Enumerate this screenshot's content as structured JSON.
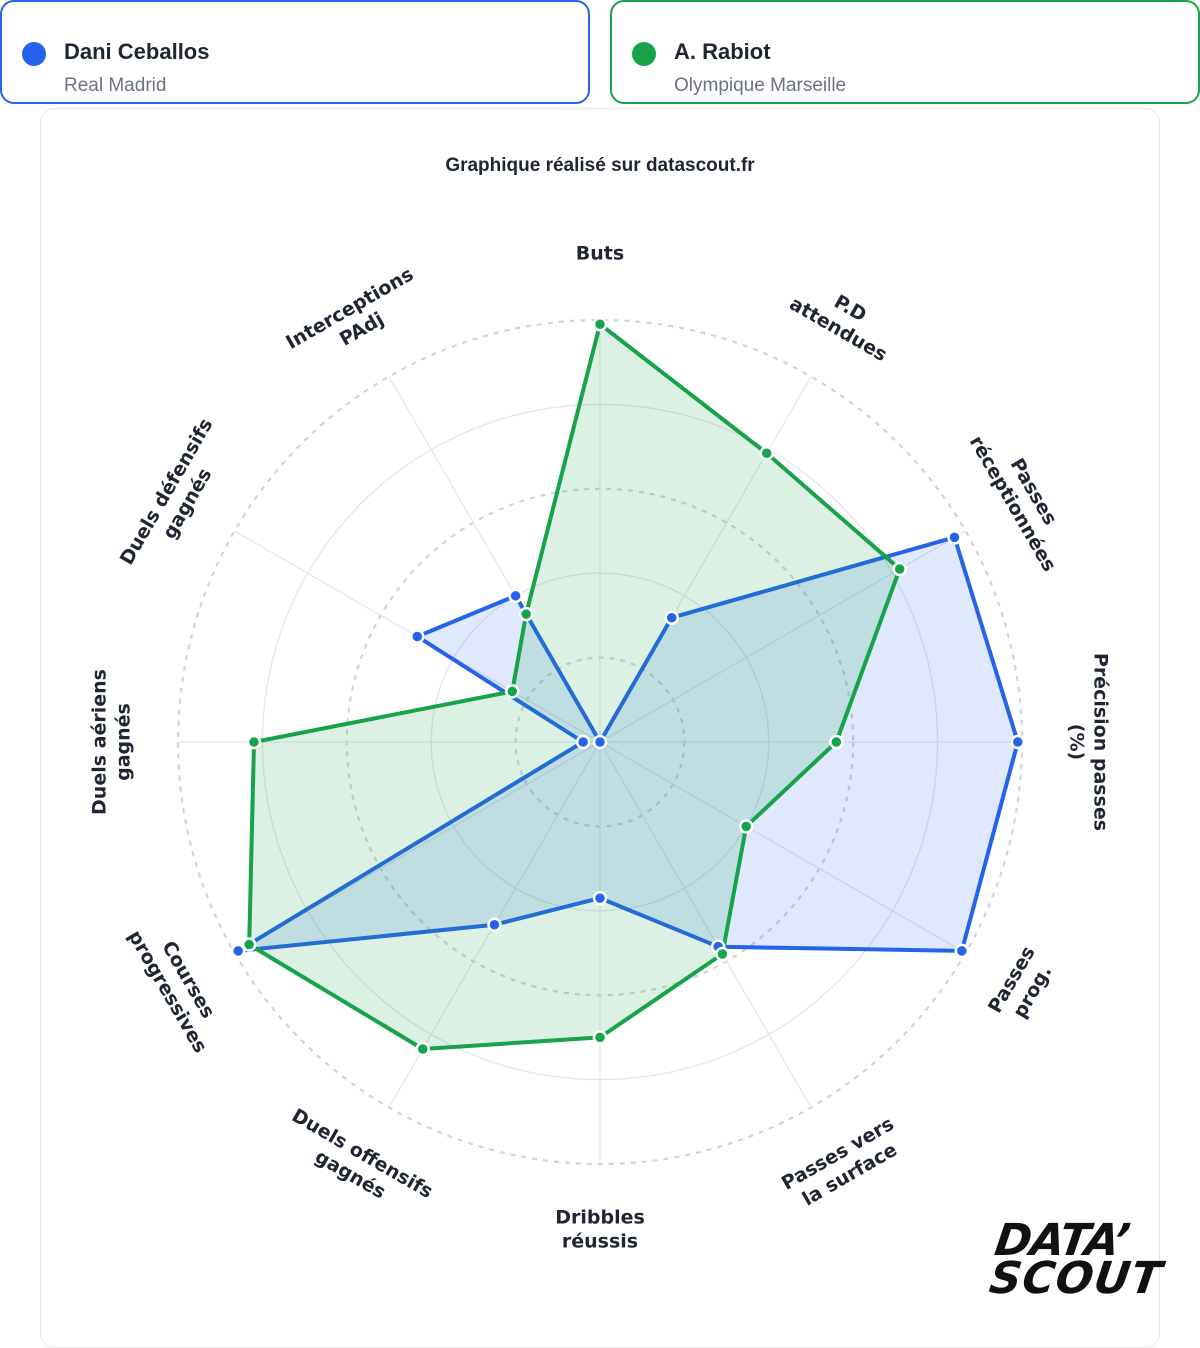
{
  "players": [
    {
      "name": "Dani Ceballos",
      "team": "Real Madrid",
      "color": "#2563eb",
      "fill": "rgba(37,99,235,0.15)"
    },
    {
      "name": "A. Rabiot",
      "team": "Olympique Marseille",
      "color": "#16a34a",
      "fill": "rgba(22,163,74,0.15)"
    }
  ],
  "credit": "Graphique réalisé sur datascout.fr",
  "logo": {
    "line1": "DATA’",
    "line2": "SCOUT"
  },
  "chart_data": {
    "type": "radar",
    "axes": [
      [
        "Buts"
      ],
      [
        "P.D",
        "attendues"
      ],
      [
        "Passes",
        "réceptionnées"
      ],
      [
        "Précision passes",
        "(%)"
      ],
      [
        "Passes",
        "prog."
      ],
      [
        "Passes vers",
        "la surface"
      ],
      [
        "Dribbles",
        "réussis"
      ],
      [
        "Duels offensifs",
        "gagnés"
      ],
      [
        "Courses",
        "progressives"
      ],
      [
        "Duels aériens",
        "gagnés"
      ],
      [
        "Duels défensifs",
        "gagnés"
      ],
      [
        "Interceptions",
        "PAdj"
      ]
    ],
    "range": [
      0,
      100
    ],
    "grid_levels": [
      20,
      40,
      60,
      80,
      100
    ],
    "series": [
      {
        "name": "Dani Ceballos",
        "values": [
          0,
          34,
          97,
          99,
          99,
          56,
          37,
          50,
          99,
          4,
          50,
          40
        ]
      },
      {
        "name": "A. Rabiot",
        "values": [
          99,
          79,
          82,
          56,
          40,
          58,
          70,
          84,
          96,
          82,
          24,
          35
        ]
      }
    ]
  }
}
